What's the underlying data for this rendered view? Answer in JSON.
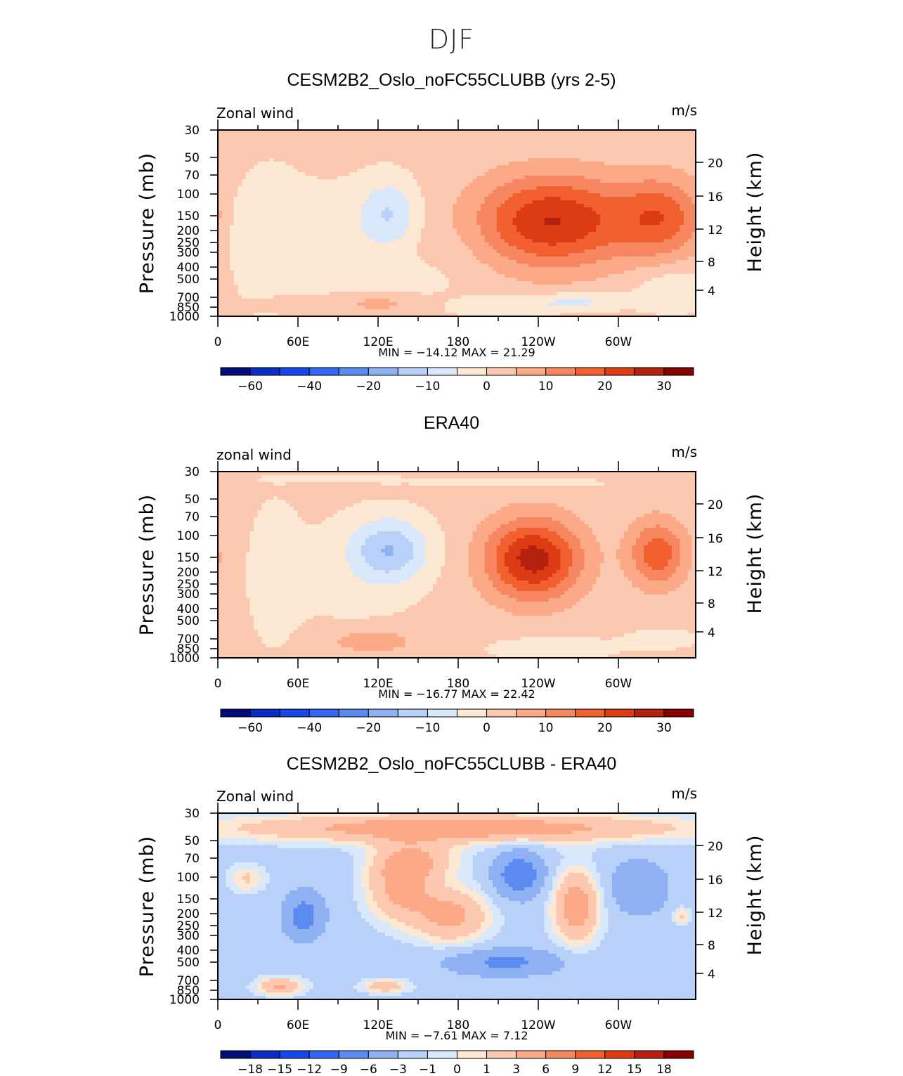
{
  "title": "DJF",
  "colormap": [
    "#000c7a",
    "#0a2cc2",
    "#1745e6",
    "#3466f5",
    "#5b8bf0",
    "#8eb1f4",
    "#b9d0f8",
    "#d9e9fb",
    "#fde8d4",
    "#fcc9b0",
    "#fca988",
    "#f68760",
    "#f2602f",
    "#dd3b14",
    "#b3200d",
    "#870000"
  ],
  "chart_data": [
    {
      "type": "heatmap",
      "title": "CESM2B2_Oslo_noFC55CLUBB (yrs 2-5)",
      "variable_label": "Zonal wind",
      "units_label": "m/s",
      "ylabel": "Pressure (mb)",
      "ylabel_right": "Height (km)",
      "y_ticks": [
        "30",
        "50",
        "70",
        "100",
        "150",
        "200",
        "250",
        "300",
        "400",
        "500",
        "700",
        "850",
        "1000"
      ],
      "y_ticks_right": [
        "20",
        "16",
        "12",
        "8",
        "4"
      ],
      "x_ticks": [
        "0",
        "60E",
        "120E",
        "180",
        "120W",
        "60W"
      ],
      "stats_text": "MIN =  −14.12   MAX =   21.29",
      "min": -14.12,
      "max": 21.29,
      "contour_levels": [
        -70,
        -60,
        -50,
        -40,
        -30,
        -20,
        -15,
        -10,
        -5,
        0,
        5,
        10,
        15,
        20,
        25,
        30,
        35
      ],
      "colorbar_labels": [
        "−60",
        "−40",
        "−20",
        "−10",
        "0",
        "10",
        "20",
        "30"
      ]
    },
    {
      "type": "heatmap",
      "title": "ERA40",
      "variable_label": "zonal wind",
      "units_label": "m/s",
      "ylabel": "Pressure (mb)",
      "ylabel_right": "Height (km)",
      "y_ticks": [
        "30",
        "50",
        "70",
        "100",
        "150",
        "200",
        "250",
        "300",
        "400",
        "500",
        "700",
        "850",
        "1000"
      ],
      "y_ticks_right": [
        "20",
        "16",
        "12",
        "8",
        "4"
      ],
      "x_ticks": [
        "0",
        "60E",
        "120E",
        "180",
        "120W",
        "60W"
      ],
      "stats_text": "MIN =  −16.77   MAX =   22.42",
      "min": -16.77,
      "max": 22.42,
      "contour_levels": [
        -70,
        -60,
        -50,
        -40,
        -30,
        -20,
        -15,
        -10,
        -5,
        0,
        5,
        10,
        15,
        20,
        25,
        30,
        35
      ],
      "colorbar_labels": [
        "−60",
        "−40",
        "−20",
        "−10",
        "0",
        "10",
        "20",
        "30"
      ]
    },
    {
      "type": "heatmap",
      "title": "CESM2B2_Oslo_noFC55CLUBB - ERA40",
      "variable_label": "Zonal wind",
      "units_label": "m/s",
      "ylabel": "Pressure (mb)",
      "ylabel_right": "Height (km)",
      "y_ticks": [
        "30",
        "50",
        "70",
        "100",
        "150",
        "200",
        "250",
        "300",
        "400",
        "500",
        "700",
        "850",
        "1000"
      ],
      "y_ticks_right": [
        "20",
        "16",
        "12",
        "8",
        "4"
      ],
      "x_ticks": [
        "0",
        "60E",
        "120E",
        "180",
        "120W",
        "60W"
      ],
      "stats_text": "MIN =    −7.61   MAX =     7.12",
      "min": -7.61,
      "max": 7.12,
      "contour_levels": [
        -20,
        -18,
        -15,
        -12,
        -9,
        -6,
        -3,
        -1,
        0,
        1,
        3,
        6,
        9,
        12,
        15,
        18,
        20
      ],
      "colorbar_labels": [
        "−18",
        "−15",
        "−12",
        "−9",
        "−6",
        "−3",
        "−1",
        "0",
        "1",
        "3",
        "6",
        "9",
        "12",
        "15",
        "18"
      ]
    }
  ]
}
